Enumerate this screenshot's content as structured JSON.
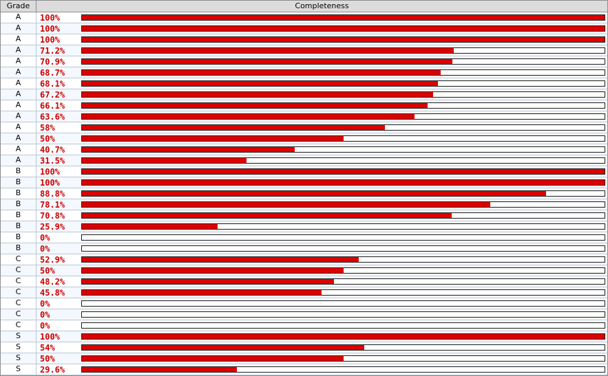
{
  "headers": {
    "grade": "Grade",
    "completeness": "Completeness"
  },
  "colors": {
    "bar_fill": "#dd0000",
    "percent_text": "#cc0000",
    "header_bg": "#dcdcdc"
  },
  "rows": [
    {
      "grade": "A",
      "percent_label": "100%",
      "value": 100
    },
    {
      "grade": "A",
      "percent_label": "100%",
      "value": 100
    },
    {
      "grade": "A",
      "percent_label": "100%",
      "value": 100
    },
    {
      "grade": "A",
      "percent_label": "71.2%",
      "value": 71.2
    },
    {
      "grade": "A",
      "percent_label": "70.9%",
      "value": 70.9
    },
    {
      "grade": "A",
      "percent_label": "68.7%",
      "value": 68.7
    },
    {
      "grade": "A",
      "percent_label": "68.1%",
      "value": 68.1
    },
    {
      "grade": "A",
      "percent_label": "67.2%",
      "value": 67.2
    },
    {
      "grade": "A",
      "percent_label": "66.1%",
      "value": 66.1
    },
    {
      "grade": "A",
      "percent_label": "63.6%",
      "value": 63.6
    },
    {
      "grade": "A",
      "percent_label": "58%",
      "value": 58
    },
    {
      "grade": "A",
      "percent_label": "50%",
      "value": 50
    },
    {
      "grade": "A",
      "percent_label": "40.7%",
      "value": 40.7
    },
    {
      "grade": "A",
      "percent_label": "31.5%",
      "value": 31.5
    },
    {
      "grade": "B",
      "percent_label": "100%",
      "value": 100
    },
    {
      "grade": "B",
      "percent_label": "100%",
      "value": 100
    },
    {
      "grade": "B",
      "percent_label": "88.8%",
      "value": 88.8
    },
    {
      "grade": "B",
      "percent_label": "78.1%",
      "value": 78.1
    },
    {
      "grade": "B",
      "percent_label": "70.8%",
      "value": 70.8
    },
    {
      "grade": "B",
      "percent_label": "25.9%",
      "value": 25.9
    },
    {
      "grade": "B",
      "percent_label": "0%",
      "value": 0
    },
    {
      "grade": "B",
      "percent_label": "0%",
      "value": 0
    },
    {
      "grade": "C",
      "percent_label": "52.9%",
      "value": 52.9
    },
    {
      "grade": "C",
      "percent_label": "50%",
      "value": 50
    },
    {
      "grade": "C",
      "percent_label": "48.2%",
      "value": 48.2
    },
    {
      "grade": "C",
      "percent_label": "45.8%",
      "value": 45.8
    },
    {
      "grade": "C",
      "percent_label": "0%",
      "value": 0
    },
    {
      "grade": "C",
      "percent_label": "0%",
      "value": 0
    },
    {
      "grade": "C",
      "percent_label": "0%",
      "value": 0
    },
    {
      "grade": "S",
      "percent_label": "100%",
      "value": 100
    },
    {
      "grade": "S",
      "percent_label": "54%",
      "value": 54
    },
    {
      "grade": "S",
      "percent_label": "50%",
      "value": 50
    },
    {
      "grade": "S",
      "percent_label": "29.6%",
      "value": 29.6
    }
  ]
}
